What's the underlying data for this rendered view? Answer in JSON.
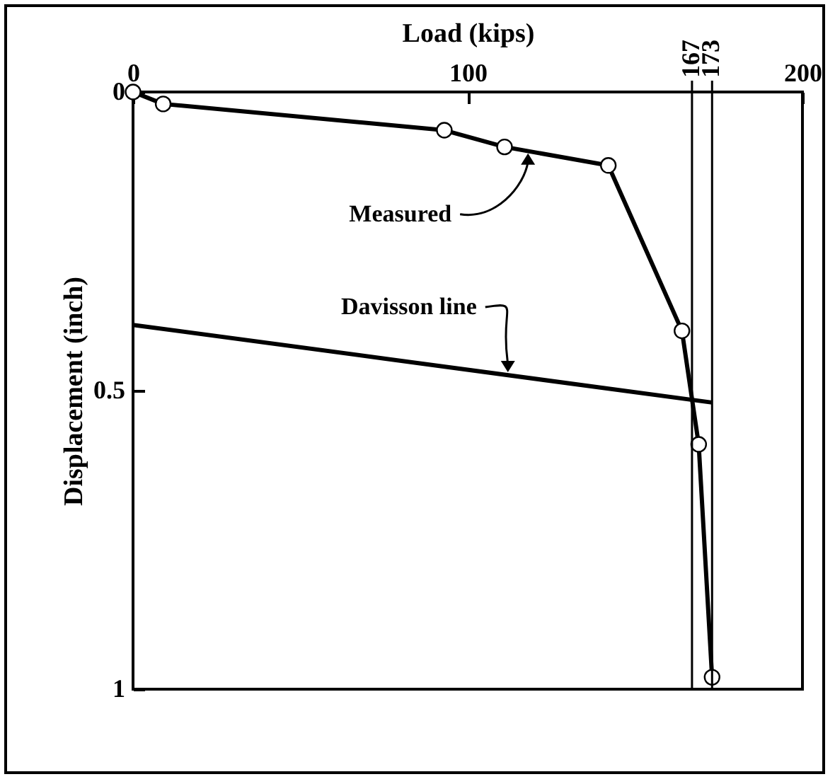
{
  "chart_data": {
    "type": "line",
    "xlabel": "Load (kips)",
    "ylabel": "Displacement (inch)",
    "xlim": [
      0,
      200
    ],
    "xticks": [
      0,
      100,
      200
    ],
    "ylim": [
      1,
      0
    ],
    "yticks": [
      0,
      0.5,
      1
    ],
    "series": [
      {
        "color": "#000000",
        "marker": "circle",
        "x": [
          0,
          9,
          93,
          111,
          142,
          164,
          169,
          173
        ],
        "values": [
          0,
          0.02,
          0.064,
          0.092,
          0.123,
          0.4,
          0.59,
          0.98
        ]
      },
      {
        "color": "#000000",
        "marker": "none",
        "x": [
          0,
          173
        ],
        "values": [
          0.39,
          0.52
        ]
      }
    ],
    "ref_lines": [
      {
        "axis": "x",
        "value": 167,
        "label": "167"
      },
      {
        "axis": "x",
        "value": 173,
        "label": "173"
      }
    ],
    "annotations": [
      {
        "text": "Measured",
        "x": 118,
        "y": 0.098
      },
      {
        "text": "Davisson line",
        "x": 112,
        "y": 0.474
      }
    ],
    "grid": false
  }
}
